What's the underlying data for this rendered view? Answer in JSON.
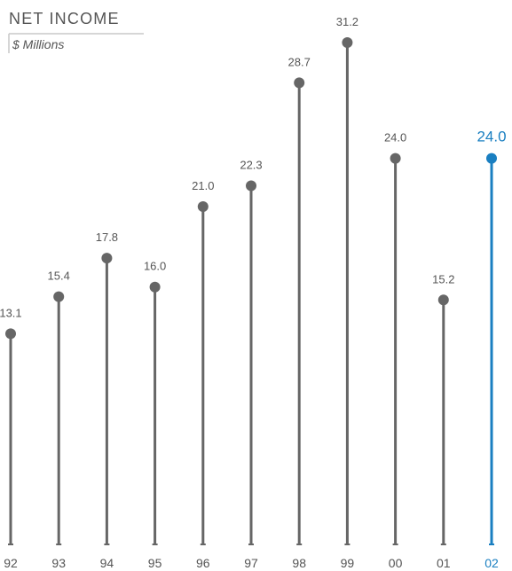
{
  "chart_data": {
    "type": "lollipop",
    "title": "NET INCOME",
    "subtitle": "$ Millions",
    "categories": [
      "92",
      "93",
      "94",
      "95",
      "96",
      "97",
      "98",
      "99",
      "00",
      "01",
      "02"
    ],
    "values": [
      13.1,
      15.4,
      17.8,
      16.0,
      21.0,
      22.3,
      28.7,
      31.2,
      24.0,
      15.2,
      24.0
    ],
    "value_labels": [
      "13.1",
      "15.4",
      "17.8",
      "16.0",
      "21.0",
      "22.3",
      "28.7",
      "31.2",
      "24.0",
      "15.2",
      "24.0"
    ],
    "highlight_index": 10,
    "ylim": [
      0,
      31.2
    ],
    "grid": false,
    "colors": {
      "default": "#666666",
      "highlight": "#1a7fc1",
      "text": "#555555",
      "rule": "#c8c8c8"
    }
  }
}
